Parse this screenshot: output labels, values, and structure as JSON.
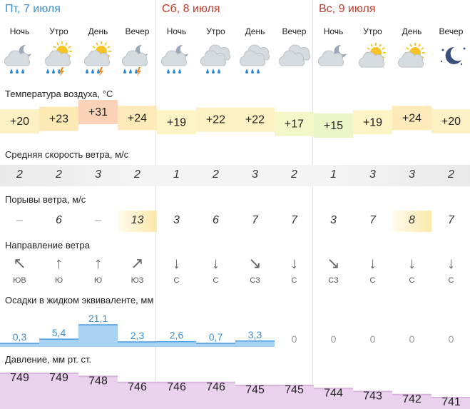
{
  "days": [
    {
      "title": "Пт, 7 июля",
      "color": "#3d8fd1"
    },
    {
      "title": "Сб, 8 июля",
      "color": "#c0392b"
    },
    {
      "title": "Вс, 9 июля",
      "color": "#c0392b"
    }
  ],
  "periods": [
    "Ночь",
    "Утро",
    "День",
    "Вечер",
    "Ночь",
    "Утро",
    "День",
    "Вечер",
    "Ночь",
    "Утро",
    "День",
    "Вечер"
  ],
  "icons": [
    "moon-cloud-rain-icon",
    "sun-cloud-thunder-icon",
    "sun-cloud-thunder-icon",
    "moon-cloud-thunder-icon",
    "moon-cloud-rain-icon",
    "cloud-rain-icon",
    "cloud-rain-icon",
    "cloud-icon",
    "moon-cloud-icon",
    "sun-cloud-icon",
    "sun-cloud-icon",
    "moon-stars-icon"
  ],
  "labels": {
    "temp": "Температура воздуха, °С",
    "wind": "Средняя скорость ветра, м/с",
    "gust": "Порывы ветра, м/с",
    "dir": "Направление ветра",
    "prec": "Осадки в жидком эквиваленте, мм",
    "press": "Давление, мм рт. ст."
  },
  "temperature": [
    "+20",
    "+23",
    "+31",
    "+24",
    "+19",
    "+22",
    "+22",
    "+17",
    "+15",
    "+19",
    "+24",
    "+20"
  ],
  "temperature_values": [
    20,
    23,
    31,
    24,
    19,
    22,
    22,
    17,
    15,
    19,
    24,
    20
  ],
  "temperature_colors": [
    "#fdf1c4",
    "#fde9b3",
    "#fbd2b8",
    "#fdeab8",
    "#fdf4c6",
    "#fdf1c4",
    "#fdf1c4",
    "#f3f6c6",
    "#eaf6c8",
    "#fdf4c6",
    "#fdeab8",
    "#fdf1c4"
  ],
  "wind_speed": [
    "2",
    "2",
    "3",
    "2",
    "1",
    "2",
    "3",
    "2",
    "1",
    "3",
    "3",
    "2"
  ],
  "wind_gusts": [
    "–",
    "6",
    "–",
    "13",
    "3",
    "6",
    "7",
    "7",
    "3",
    "7",
    "8",
    "7"
  ],
  "wind_gust_colors": [
    "#ffffff",
    "#ffffff",
    "#ffffff",
    "#fbe8a8",
    "#ffffff",
    "#ffffff",
    "#ffffff",
    "#ffffff",
    "#ffffff",
    "#ffffff",
    "#fbe8a8",
    "#ffffff"
  ],
  "wind_direction_arrows": [
    "↖",
    "↑",
    "↑",
    "↗",
    "↓",
    "↓",
    "↘",
    "↓",
    "↘",
    "↓",
    "↓",
    "↓"
  ],
  "wind_direction": [
    "ЮВ",
    "Ю",
    "Ю",
    "ЮЗ",
    "С",
    "С",
    "СЗ",
    "С",
    "СЗ",
    "С",
    "С",
    "С"
  ],
  "precipitation": [
    "0,3",
    "5,4",
    "21,1",
    "2,3",
    "2,6",
    "0,7",
    "3,3",
    "0",
    "0",
    "0",
    "0",
    "0"
  ],
  "precipitation_values": [
    0.3,
    5.4,
    21.1,
    2.3,
    2.6,
    0.7,
    3.3,
    0,
    0,
    0,
    0,
    0
  ],
  "pressure": [
    "749",
    "749",
    "748",
    "746",
    "746",
    "746",
    "745",
    "745",
    "744",
    "743",
    "742",
    "741"
  ],
  "pressure_values": [
    749,
    749,
    748,
    746,
    746,
    746,
    745,
    745,
    744,
    743,
    742,
    741
  ],
  "colors": {
    "precip_text": "#3d8fd1",
    "precip_zero": "#999999",
    "precip_fill": "#a7d2f2",
    "pressure_fill": "#ead2ee",
    "pressure_line": "#d7b5dc",
    "band": "#ededed"
  }
}
